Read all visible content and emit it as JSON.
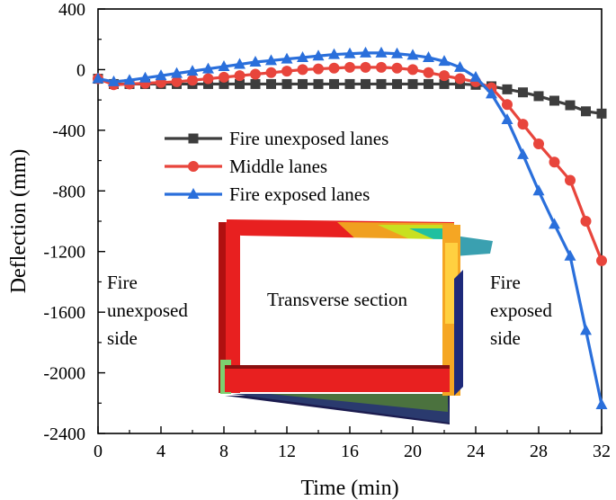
{
  "chart_data": {
    "type": "line",
    "xlabel": "Time (min)",
    "ylabel": "Deflection (mm)",
    "xlim": [
      0,
      32
    ],
    "ylim": [
      -2400,
      400
    ],
    "xticks": [
      "0",
      "4",
      "8",
      "12",
      "16",
      "20",
      "24",
      "28",
      "32"
    ],
    "yticks": [
      "400",
      "0",
      "-400",
      "-800",
      "-1200",
      "-1600",
      "-2000",
      "-2400"
    ],
    "series": [
      {
        "name": "Fire unexposed lanes",
        "color": "#3d3d3d",
        "marker": "square",
        "x": [
          0,
          1,
          2,
          3,
          4,
          5,
          6,
          7,
          8,
          9,
          10,
          11,
          12,
          13,
          14,
          15,
          16,
          17,
          18,
          19,
          20,
          21,
          22,
          23,
          24,
          25,
          26,
          27,
          28,
          29,
          30,
          31,
          32
        ],
        "y": [
          -60,
          -95,
          -95,
          -95,
          -95,
          -95,
          -95,
          -95,
          -95,
          -95,
          -95,
          -95,
          -95,
          -95,
          -95,
          -95,
          -95,
          -95,
          -95,
          -95,
          -95,
          -95,
          -95,
          -95,
          -100,
          -110,
          -130,
          -150,
          -175,
          -205,
          -235,
          -275,
          -290
        ]
      },
      {
        "name": "Middle lanes",
        "color": "#e8453c",
        "marker": "circle",
        "x": [
          0,
          1,
          2,
          3,
          4,
          5,
          6,
          7,
          8,
          9,
          10,
          11,
          12,
          13,
          14,
          15,
          16,
          17,
          18,
          19,
          20,
          21,
          22,
          23,
          24,
          25,
          26,
          27,
          28,
          29,
          30,
          31,
          32
        ],
        "y": [
          -60,
          -100,
          -95,
          -90,
          -85,
          -80,
          -70,
          -60,
          -50,
          -40,
          -30,
          -20,
          -10,
          0,
          5,
          10,
          15,
          15,
          15,
          10,
          0,
          -20,
          -40,
          -60,
          -80,
          -120,
          -230,
          -360,
          -490,
          -610,
          -730,
          -1000,
          -1260
        ]
      },
      {
        "name": "Fire exposed lanes",
        "color": "#2a6fdb",
        "marker": "triangle",
        "x": [
          0,
          1,
          2,
          3,
          4,
          5,
          6,
          7,
          8,
          9,
          10,
          11,
          12,
          13,
          14,
          15,
          16,
          17,
          18,
          19,
          20,
          21,
          22,
          23,
          24,
          25,
          26,
          27,
          28,
          29,
          30,
          31,
          32
        ],
        "y": [
          -60,
          -80,
          -70,
          -55,
          -40,
          -25,
          -10,
          5,
          20,
          35,
          50,
          60,
          70,
          80,
          90,
          100,
          105,
          110,
          110,
          105,
          95,
          80,
          55,
          15,
          -50,
          -160,
          -330,
          -560,
          -800,
          -1020,
          -1230,
          -1720,
          -2210
        ]
      }
    ],
    "legend_position": "upper-middle",
    "annotations": {
      "left_side": [
        "Fire",
        "unexposed",
        "side"
      ],
      "right_side": [
        "Fire",
        "exposed",
        "side"
      ],
      "inset_label": "Transverse section"
    }
  }
}
